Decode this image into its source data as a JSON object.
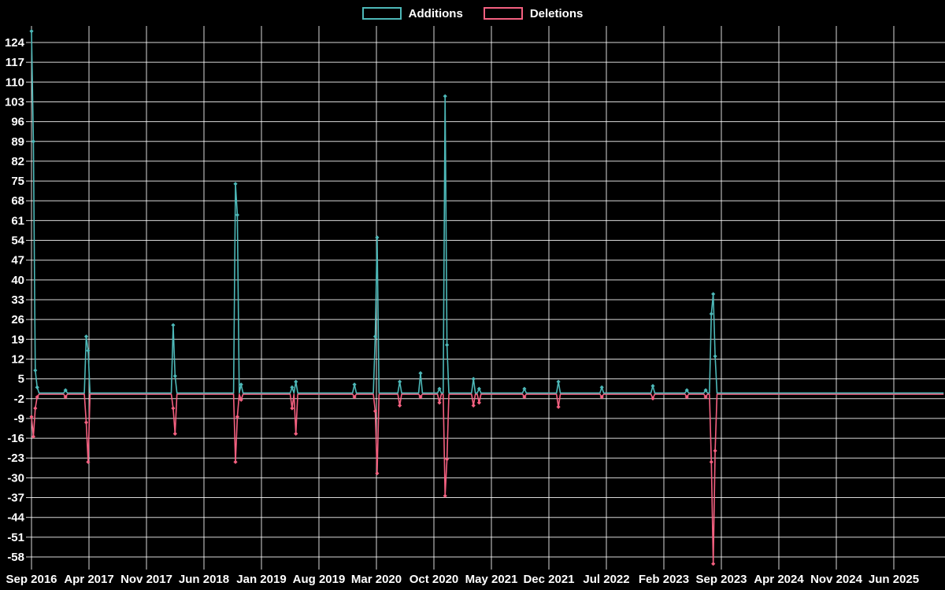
{
  "chart_data": {
    "type": "line",
    "title": "",
    "background": "#000000",
    "grid": true,
    "text_color": "#ffffff",
    "gridline_color": "#ffffff",
    "legend_position": "top-center",
    "series": [
      {
        "name": "Additions",
        "color": "#4db8b8"
      },
      {
        "name": "Deletions",
        "color": "#f46080"
      }
    ],
    "x_axis": {
      "tick_labels": [
        "Sep 2016",
        "Apr 2017",
        "Nov 2017",
        "Jun 2018",
        "Jan 2019",
        "Aug 2019",
        "Mar 2020",
        "Oct 2020",
        "May 2021",
        "Dec 2021",
        "Jul 2022",
        "Feb 2023",
        "Sep 2023",
        "Apr 2024",
        "Nov 2024",
        "Jun 2025"
      ],
      "unit": "weeks since Sep 2016",
      "total_weeks": 483
    },
    "y_axis": {
      "ticks": [
        124,
        117,
        110,
        103,
        96,
        89,
        82,
        75,
        68,
        61,
        54,
        47,
        40,
        33,
        26,
        19,
        12,
        5,
        -2,
        -9,
        -16,
        -23,
        -30,
        -37,
        -44,
        -51,
        -58
      ],
      "max": 124,
      "min": -58,
      "step": 7
    },
    "baseline_value": 0,
    "events_weekly": [
      {
        "week": 0,
        "additions": 128,
        "deletions": -8
      },
      {
        "week": 1,
        "additions": 89,
        "deletions": -15
      },
      {
        "week": 2,
        "additions": 8,
        "deletions": -5
      },
      {
        "week": 3,
        "additions": 2,
        "deletions": -1
      },
      {
        "week": 18,
        "additions": 1,
        "deletions": -1
      },
      {
        "week": 29,
        "additions": 20,
        "deletions": -10
      },
      {
        "week": 30,
        "additions": 15,
        "deletions": -24
      },
      {
        "week": 75,
        "additions": 24,
        "deletions": -5
      },
      {
        "week": 76,
        "additions": 6,
        "deletions": -14
      },
      {
        "week": 108,
        "additions": 74,
        "deletions": -24
      },
      {
        "week": 109,
        "additions": 63,
        "deletions": -8
      },
      {
        "week": 111,
        "additions": 3,
        "deletions": -2
      },
      {
        "week": 138,
        "additions": 2,
        "deletions": -5
      },
      {
        "week": 140,
        "additions": 4,
        "deletions": -14
      },
      {
        "week": 171,
        "additions": 3,
        "deletions": -1
      },
      {
        "week": 182,
        "additions": 20,
        "deletions": -6
      },
      {
        "week": 183,
        "additions": 55,
        "deletions": -28
      },
      {
        "week": 195,
        "additions": 4,
        "deletions": -4
      },
      {
        "week": 206,
        "additions": 7,
        "deletions": -1
      },
      {
        "week": 216,
        "additions": 1.5,
        "deletions": -3
      },
      {
        "week": 219,
        "additions": 105,
        "deletions": -36
      },
      {
        "week": 220,
        "additions": 17,
        "deletions": -23
      },
      {
        "week": 234,
        "additions": 5,
        "deletions": -4
      },
      {
        "week": 237,
        "additions": 1.5,
        "deletions": -3
      },
      {
        "week": 261,
        "additions": 1.5,
        "deletions": -1
      },
      {
        "week": 279,
        "additions": 4,
        "deletions": -4.5
      },
      {
        "week": 302,
        "additions": 2,
        "deletions": -1
      },
      {
        "week": 329,
        "additions": 2.5,
        "deletions": -1.5
      },
      {
        "week": 347,
        "additions": 1,
        "deletions": -1
      },
      {
        "week": 357,
        "additions": 1,
        "deletions": -1
      },
      {
        "week": 360,
        "additions": 28,
        "deletions": -24
      },
      {
        "week": 361,
        "additions": 35,
        "deletions": -60
      },
      {
        "week": 362,
        "additions": 13,
        "deletions": -20
      }
    ]
  }
}
